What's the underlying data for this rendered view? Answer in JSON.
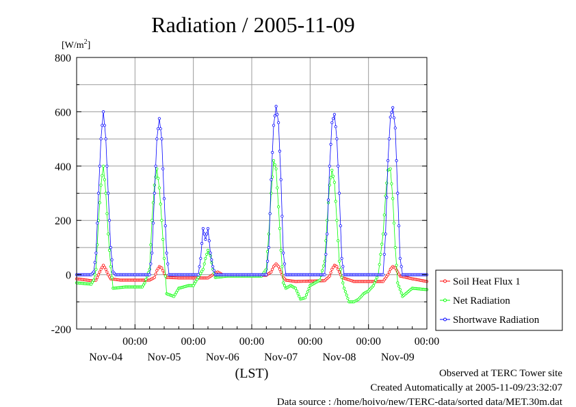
{
  "chart_data": {
    "type": "line",
    "title": "Radiation / 2005-11-09",
    "ylabel_unit": "[W/m",
    "ylabel_unit_sup": "2",
    "ylabel_unit_end": "]",
    "xlabel": "(LST)",
    "ylim": [
      -200,
      800
    ],
    "yticks": [
      -200,
      0,
      200,
      400,
      600,
      800
    ],
    "y_minor_step": 100,
    "x_unit": "hours since Nov-03 12:00",
    "xlim": [
      0,
      144
    ],
    "xticks": [
      {
        "t": 24,
        "time": "00:00",
        "day": "Nov-04"
      },
      {
        "t": 48,
        "time": "00:00",
        "day": "Nov-05"
      },
      {
        "t": 72,
        "time": "00:00",
        "day": "Nov-06"
      },
      {
        "t": 96,
        "time": "00:00",
        "day": "Nov-07"
      },
      {
        "t": 120,
        "time": "00:00",
        "day": "Nov-08"
      },
      {
        "t": 144,
        "time": "00:00",
        "day": "Nov-09"
      }
    ],
    "grid": true,
    "legend_position": "right",
    "series": [
      {
        "name": "Soil Heat Flux 1",
        "color": "#ff0000",
        "points": [
          [
            0,
            -15
          ],
          [
            6,
            -22
          ],
          [
            8,
            -20
          ],
          [
            9,
            0
          ],
          [
            10,
            20
          ],
          [
            11,
            35
          ],
          [
            12,
            20
          ],
          [
            13,
            0
          ],
          [
            14,
            -15
          ],
          [
            18,
            -20
          ],
          [
            30,
            -20
          ],
          [
            32,
            -10
          ],
          [
            33,
            15
          ],
          [
            34,
            30
          ],
          [
            35,
            25
          ],
          [
            36,
            5
          ],
          [
            37,
            -10
          ],
          [
            42,
            -12
          ],
          [
            54,
            -12
          ],
          [
            56,
            0
          ],
          [
            57,
            5
          ],
          [
            58,
            10
          ],
          [
            59,
            5
          ],
          [
            60,
            0
          ],
          [
            62,
            -2
          ],
          [
            78,
            -2
          ],
          [
            80,
            10
          ],
          [
            81,
            30
          ],
          [
            82,
            40
          ],
          [
            83,
            30
          ],
          [
            84,
            10
          ],
          [
            85,
            -10
          ],
          [
            86,
            -20
          ],
          [
            90,
            -25
          ],
          [
            102,
            -22
          ],
          [
            104,
            -5
          ],
          [
            105,
            20
          ],
          [
            106,
            35
          ],
          [
            107,
            30
          ],
          [
            108,
            10
          ],
          [
            109,
            -10
          ],
          [
            114,
            -25
          ],
          [
            126,
            -25
          ],
          [
            128,
            0
          ],
          [
            129,
            20
          ],
          [
            130,
            30
          ],
          [
            131,
            25
          ],
          [
            132,
            10
          ],
          [
            133,
            -5
          ],
          [
            138,
            -15
          ],
          [
            144,
            -25
          ]
        ]
      },
      {
        "name": "Net Radiation",
        "color": "#00ff00",
        "points": [
          [
            0,
            -30
          ],
          [
            6,
            -35
          ],
          [
            7,
            -20
          ],
          [
            8,
            20
          ],
          [
            9,
            200
          ],
          [
            10,
            330
          ],
          [
            11,
            400
          ],
          [
            12,
            300
          ],
          [
            13,
            150
          ],
          [
            14,
            30
          ],
          [
            15,
            -50
          ],
          [
            20,
            -45
          ],
          [
            27,
            -45
          ],
          [
            28,
            -30
          ],
          [
            30,
            20
          ],
          [
            31,
            200
          ],
          [
            32,
            330
          ],
          [
            33,
            390
          ],
          [
            34,
            320
          ],
          [
            35,
            200
          ],
          [
            36,
            60
          ],
          [
            37,
            -70
          ],
          [
            40,
            -80
          ],
          [
            42,
            -50
          ],
          [
            46,
            -40
          ],
          [
            48,
            -40
          ],
          [
            52,
            20
          ],
          [
            53,
            60
          ],
          [
            54,
            90
          ],
          [
            55,
            70
          ],
          [
            56,
            20
          ],
          [
            57,
            -10
          ],
          [
            62,
            -5
          ],
          [
            72,
            -5
          ],
          [
            76,
            -5
          ],
          [
            78,
            20
          ],
          [
            79,
            150
          ],
          [
            80,
            300
          ],
          [
            81,
            420
          ],
          [
            82,
            390
          ],
          [
            83,
            250
          ],
          [
            84,
            90
          ],
          [
            85,
            -30
          ],
          [
            86,
            -50
          ],
          [
            88,
            -40
          ],
          [
            90,
            -50
          ],
          [
            92,
            -90
          ],
          [
            94,
            -85
          ],
          [
            96,
            -40
          ],
          [
            100,
            -20
          ],
          [
            102,
            50
          ],
          [
            103,
            200
          ],
          [
            104,
            330
          ],
          [
            105,
            385
          ],
          [
            106,
            340
          ],
          [
            107,
            200
          ],
          [
            108,
            50
          ],
          [
            109,
            -10
          ],
          [
            110,
            -50
          ],
          [
            112,
            -100
          ],
          [
            114,
            -100
          ],
          [
            116,
            -90
          ],
          [
            118,
            -70
          ],
          [
            120,
            -60
          ],
          [
            122,
            -40
          ],
          [
            124,
            0
          ],
          [
            126,
            150
          ],
          [
            127,
            290
          ],
          [
            128,
            385
          ],
          [
            129,
            390
          ],
          [
            130,
            280
          ],
          [
            131,
            100
          ],
          [
            132,
            -30
          ],
          [
            134,
            -80
          ],
          [
            138,
            -50
          ],
          [
            144,
            -55
          ]
        ]
      },
      {
        "name": "Shortwave Radiation",
        "color": "#0000ff",
        "points": [
          [
            0,
            0
          ],
          [
            6,
            0
          ],
          [
            7,
            10
          ],
          [
            8,
            80
          ],
          [
            9,
            300
          ],
          [
            10,
            500
          ],
          [
            11,
            600
          ],
          [
            12,
            500
          ],
          [
            13,
            300
          ],
          [
            14,
            100
          ],
          [
            15,
            10
          ],
          [
            16,
            0
          ],
          [
            30,
            0
          ],
          [
            31,
            80
          ],
          [
            32,
            300
          ],
          [
            33,
            500
          ],
          [
            34,
            575
          ],
          [
            35,
            500
          ],
          [
            36,
            280
          ],
          [
            37,
            80
          ],
          [
            38,
            0
          ],
          [
            50,
            0
          ],
          [
            51,
            60
          ],
          [
            52,
            170
          ],
          [
            53,
            130
          ],
          [
            54,
            170
          ],
          [
            55,
            80
          ],
          [
            56,
            30
          ],
          [
            57,
            0
          ],
          [
            78,
            0
          ],
          [
            79,
            100
          ],
          [
            80,
            350
          ],
          [
            81,
            550
          ],
          [
            82,
            620
          ],
          [
            83,
            560
          ],
          [
            84,
            350
          ],
          [
            85,
            80
          ],
          [
            86,
            0
          ],
          [
            102,
            0
          ],
          [
            103,
            150
          ],
          [
            104,
            400
          ],
          [
            105,
            560
          ],
          [
            106,
            590
          ],
          [
            107,
            500
          ],
          [
            108,
            300
          ],
          [
            109,
            60
          ],
          [
            110,
            0
          ],
          [
            126,
            0
          ],
          [
            127,
            150
          ],
          [
            128,
            420
          ],
          [
            129,
            580
          ],
          [
            130,
            615
          ],
          [
            131,
            540
          ],
          [
            132,
            300
          ],
          [
            133,
            60
          ],
          [
            134,
            0
          ],
          [
            144,
            0
          ]
        ]
      }
    ]
  },
  "footer": {
    "line1": "Observed at TERC Tower site",
    "line2": "Created Automatically at 2005-11-09/23:32:07",
    "line3": "Data source : /home/hoivo/new/TERC-data/sorted data/MET.30m.dat"
  }
}
